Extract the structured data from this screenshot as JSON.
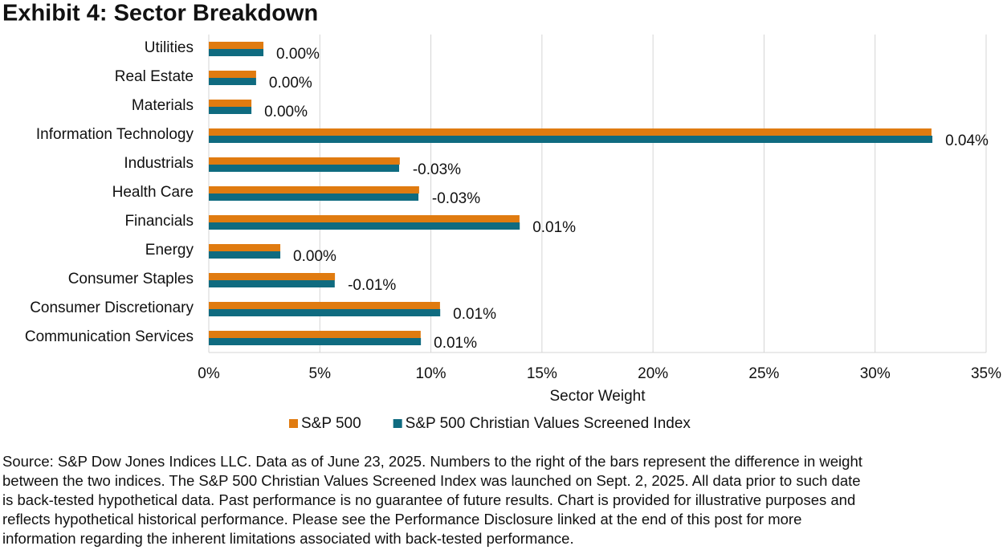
{
  "chart_data": {
    "type": "hbar",
    "title": "Exhibit 4: Sector Breakdown",
    "categories": [
      "Utilities",
      "Real Estate",
      "Materials",
      "Information Technology",
      "Industrials",
      "Health Care",
      "Financials",
      "Energy",
      "Consumer Staples",
      "Consumer Discretionary",
      "Communication Services"
    ],
    "series": [
      {
        "name": "S&P 500",
        "color": "#e07b10",
        "values": [
          2.46,
          2.13,
          1.92,
          32.54,
          8.6,
          9.47,
          13.99,
          3.22,
          5.68,
          10.41,
          9.54
        ]
      },
      {
        "name": "S&P 500 Christian Values Screened Index",
        "color": "#0f6b80",
        "values": [
          2.46,
          2.13,
          1.92,
          32.58,
          8.57,
          9.44,
          14.0,
          3.22,
          5.67,
          10.42,
          9.55
        ]
      }
    ],
    "differences": {
      "values": [
        0,
        0,
        0,
        0.04,
        -0.03,
        -0.03,
        0.01,
        0,
        -0.01,
        0.01,
        0.01
      ],
      "value_labels": [
        "0.00%",
        "0.00%",
        "0.00%",
        "0.04%",
        "-0.03%",
        "-0.03%",
        "0.01%",
        "0.00%",
        "-0.01%",
        "0.01%",
        "0.01%"
      ]
    },
    "xlabel": "Sector Weight",
    "xlim": [
      0,
      35
    ],
    "xticks": [
      {
        "value": 0,
        "label": "0%"
      },
      {
        "value": 5,
        "label": "5%"
      },
      {
        "value": 10,
        "label": "10%"
      },
      {
        "value": 15,
        "label": "15%"
      },
      {
        "value": 20,
        "label": "20%"
      },
      {
        "value": 25,
        "label": "25%"
      },
      {
        "value": 30,
        "label": "30%"
      },
      {
        "value": 35,
        "label": "35%"
      }
    ],
    "grid": true,
    "legend": "bottom",
    "footnote": [
      "Source: S&P Dow Jones Indices LLC. Data as of June 23, 2025. Numbers to the right of the bars represent the difference in weight",
      "between the two indices. The S&P 500 Christian Values Screened Index was launched on Sept. 2, 2025. All data prior to such date",
      "is back-tested hypothetical data. Past performance is no guarantee of future results. Chart is provided for illustrative purposes and",
      "reflects hypothetical historical performance. Please see the Performance Disclosure linked at the end of this post for more",
      "information regarding the inherent limitations associated with back-tested performance."
    ]
  }
}
